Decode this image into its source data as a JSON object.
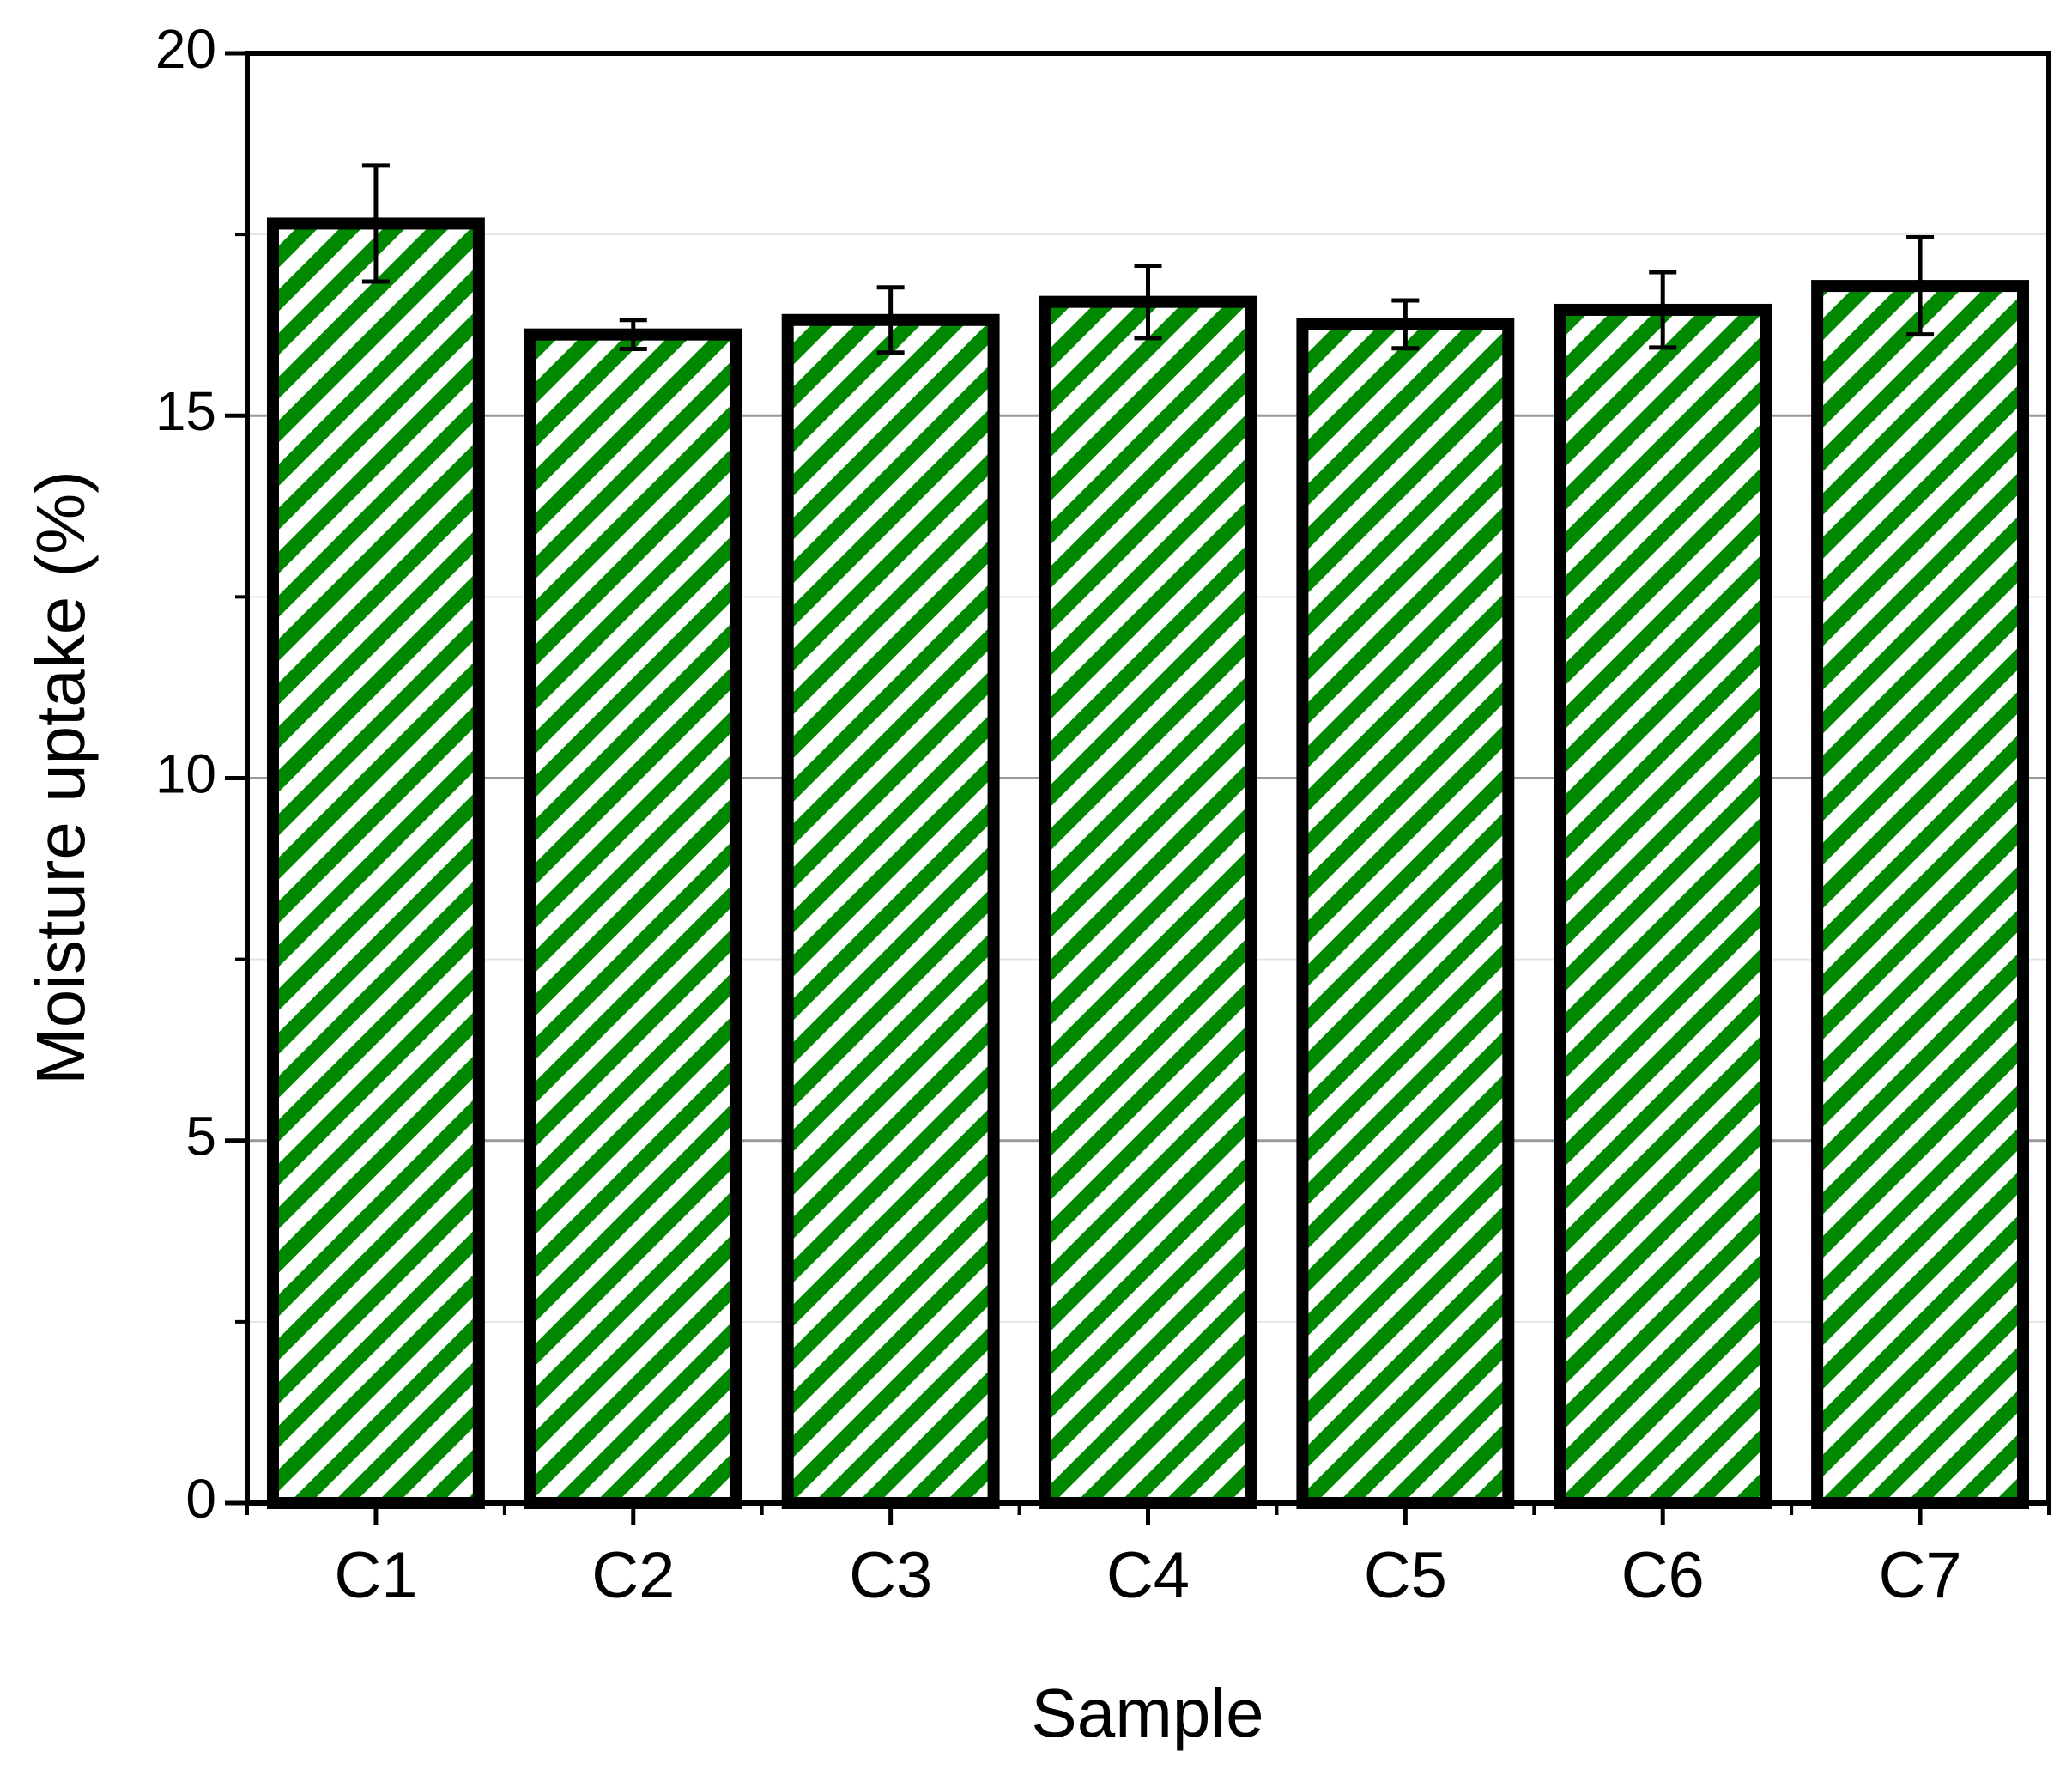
{
  "chart_data": {
    "type": "bar",
    "xlabel": "Sample",
    "ylabel": "Moisture uptake (%)",
    "categories": [
      "C1",
      "C2",
      "C3",
      "C4",
      "C5",
      "C6",
      "C7"
    ],
    "values": [
      17.65,
      16.12,
      16.32,
      16.57,
      16.26,
      16.46,
      16.79
    ],
    "errors": [
      0.8,
      0.2,
      0.45,
      0.5,
      0.33,
      0.52,
      0.67
    ],
    "color": "#008800",
    "ylim": [
      0,
      20
    ],
    "yticks": [
      0,
      5,
      10,
      15,
      20
    ],
    "grid": true
  }
}
